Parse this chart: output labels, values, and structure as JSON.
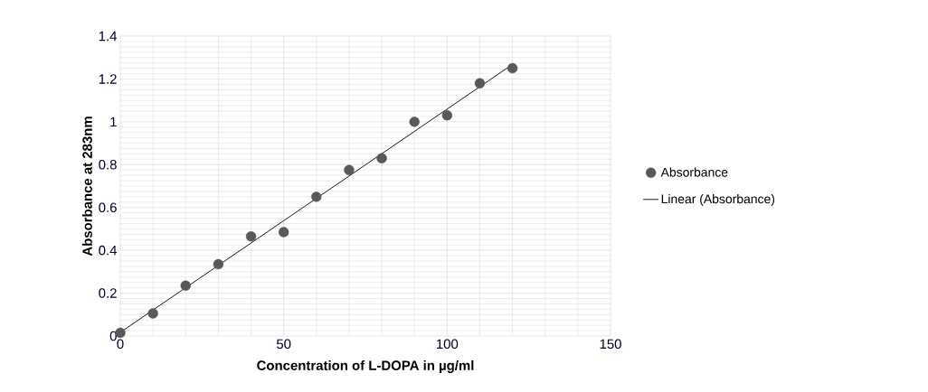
{
  "chart_data": {
    "type": "scatter",
    "xlabel": "Concentration of L-DOPA in µg/ml",
    "ylabel": "Absorbance at 283nm",
    "series": [
      {
        "name": "Absorbance",
        "color": "#595959",
        "marker": "circle",
        "x": [
          0,
          10,
          20,
          30,
          40,
          50,
          60,
          70,
          80,
          90,
          100,
          110,
          120
        ],
        "values": [
          0.015,
          0.105,
          0.235,
          0.335,
          0.465,
          0.485,
          0.65,
          0.775,
          0.83,
          1.0,
          1.03,
          1.18,
          1.25
        ]
      },
      {
        "name": "Linear (Absorbance)",
        "type": "line",
        "color": "#000000",
        "marker": "none",
        "x": [
          0,
          120
        ],
        "values": [
          0.017,
          1.268
        ]
      }
    ],
    "xlim": [
      0,
      150
    ],
    "xticks": [
      0,
      50,
      100,
      150
    ],
    "ylim": [
      0,
      1.4
    ],
    "yticks": [
      0,
      0.2,
      0.4,
      0.6,
      0.8,
      1,
      1.2,
      1.4
    ],
    "grid": true,
    "legend": "right"
  }
}
